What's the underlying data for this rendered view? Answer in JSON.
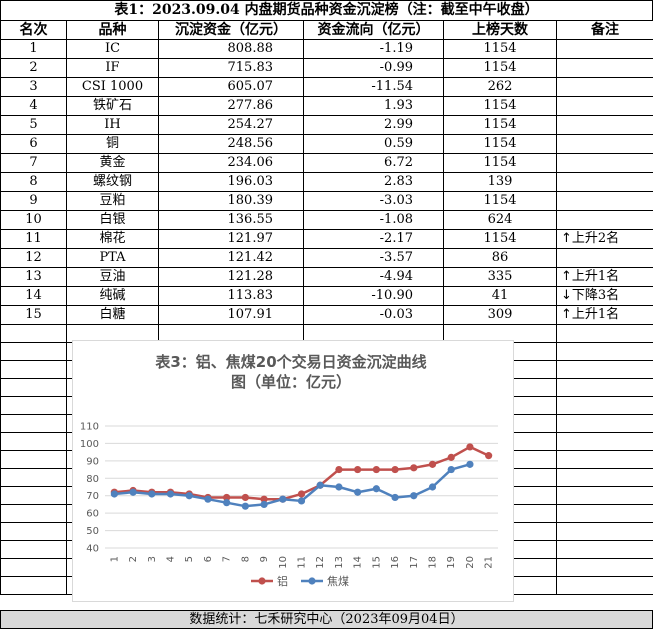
{
  "table": {
    "title": "表1：2023.09.04 内盘期货品种资金沉淀榜（注：截至中午收盘）",
    "headers": [
      "名次",
      "品种",
      "沉淀资金（亿元）",
      "资金流向（亿元）",
      "上榜天数",
      "备注"
    ],
    "rows": [
      {
        "rank": "1",
        "name": "IC",
        "fund": "808.88",
        "flow": "-1.19",
        "days": "1154",
        "note": "",
        "arrow": ""
      },
      {
        "rank": "2",
        "name": "IF",
        "fund": "715.83",
        "flow": "-0.99",
        "days": "1154",
        "note": "",
        "arrow": ""
      },
      {
        "rank": "3",
        "name": "CSI 1000",
        "fund": "605.07",
        "flow": "-11.54",
        "days": "262",
        "note": "",
        "arrow": ""
      },
      {
        "rank": "4",
        "name": "铁矿石",
        "fund": "277.86",
        "flow": "1.93",
        "days": "1154",
        "note": "",
        "arrow": ""
      },
      {
        "rank": "5",
        "name": "IH",
        "fund": "254.27",
        "flow": "2.99",
        "days": "1154",
        "note": "",
        "arrow": ""
      },
      {
        "rank": "6",
        "name": "铜",
        "fund": "248.56",
        "flow": "0.59",
        "days": "1154",
        "note": "",
        "arrow": ""
      },
      {
        "rank": "7",
        "name": "黄金",
        "fund": "234.06",
        "flow": "6.72",
        "days": "1154",
        "note": "",
        "arrow": ""
      },
      {
        "rank": "8",
        "name": "螺纹钢",
        "fund": "196.03",
        "flow": "2.83",
        "days": "139",
        "note": "",
        "arrow": ""
      },
      {
        "rank": "9",
        "name": "豆粕",
        "fund": "180.39",
        "flow": "-3.03",
        "days": "1154",
        "note": "",
        "arrow": ""
      },
      {
        "rank": "10",
        "name": "白银",
        "fund": "136.55",
        "flow": "-1.08",
        "days": "624",
        "note": "",
        "arrow": ""
      },
      {
        "rank": "11",
        "name": "棉花",
        "fund": "121.97",
        "flow": "-2.17",
        "days": "1154",
        "note": "上升2名",
        "arrow": "↑"
      },
      {
        "rank": "12",
        "name": "PTA",
        "fund": "121.42",
        "flow": "-3.57",
        "days": "86",
        "note": "",
        "arrow": ""
      },
      {
        "rank": "13",
        "name": "豆油",
        "fund": "121.28",
        "flow": "-4.94",
        "days": "335",
        "note": "上升1名",
        "arrow": "↑"
      },
      {
        "rank": "14",
        "name": "纯碱",
        "fund": "113.83",
        "flow": "-10.90",
        "days": "41",
        "note": "下降3名",
        "arrow": "↓"
      },
      {
        "rank": "15",
        "name": "白糖",
        "fund": "107.91",
        "flow": "-0.03",
        "days": "309",
        "note": "上升1名",
        "arrow": "↑"
      }
    ]
  },
  "footer": "数据统计：七禾研究中心（2023年09月04日）",
  "chart_data": {
    "type": "line",
    "title": "表3：铝、焦煤20个交易日资金沉淀曲线图（单位：亿元）",
    "title_lines": [
      "表3：铝、焦煤20个交易日资金沉淀曲线",
      "图（单位：亿元）"
    ],
    "x": [
      "1",
      "2",
      "3",
      "4",
      "5",
      "6",
      "7",
      "8",
      "9",
      "10",
      "11",
      "12",
      "13",
      "14",
      "15",
      "16",
      "17",
      "18",
      "19",
      "20",
      "21"
    ],
    "ylim": [
      40,
      110
    ],
    "yticks": [
      40,
      50,
      60,
      70,
      80,
      90,
      100,
      110
    ],
    "grid": true,
    "legend_position": "bottom",
    "series": [
      {
        "name": "铝",
        "color": "#c0504d",
        "values": [
          72,
          73,
          72,
          72,
          71,
          69,
          69,
          69,
          68,
          68,
          71,
          76,
          85,
          85,
          85,
          85,
          86,
          88,
          92,
          98,
          93
        ]
      },
      {
        "name": "焦煤",
        "color": "#4f81bd",
        "values": [
          71,
          72,
          71,
          71,
          70,
          68,
          66,
          64,
          65,
          68,
          67,
          76,
          75,
          72,
          74,
          69,
          70,
          75,
          85,
          88,
          null
        ]
      }
    ]
  }
}
